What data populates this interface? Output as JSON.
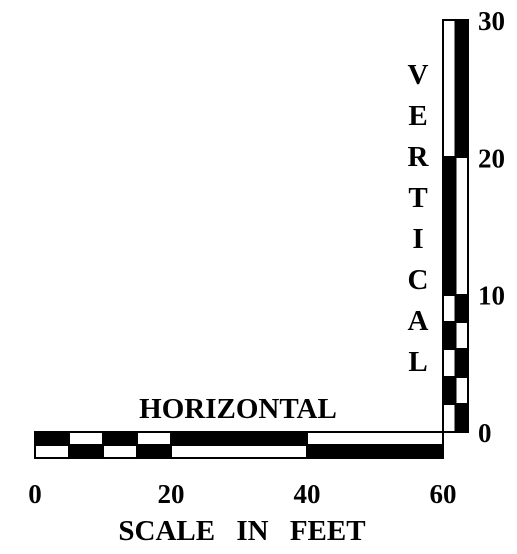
{
  "horizontal_scale": {
    "label": "HORIZONTAL",
    "ticks": [
      0,
      20,
      40,
      60
    ]
  },
  "vertical_scale": {
    "label": "VERTICAL",
    "ticks": [
      0,
      10,
      20,
      30
    ]
  },
  "caption": "SCALE IN FEET"
}
